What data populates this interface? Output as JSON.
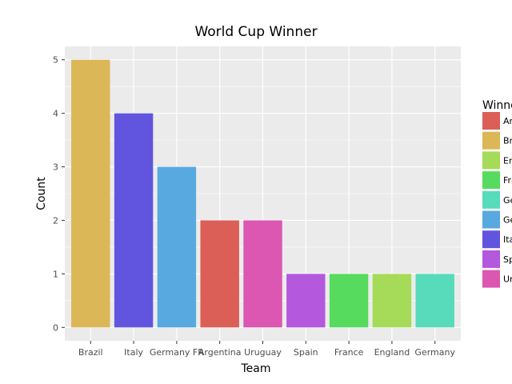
{
  "chart_data": {
    "type": "bar",
    "title": "World Cup Winner",
    "xlabel": "Team",
    "ylabel": "Count",
    "ylim": [
      0,
      5
    ],
    "yticks": [
      0,
      1,
      2,
      3,
      4,
      5
    ],
    "grid": true,
    "legend_position": "right",
    "legend_title": "Winner",
    "categories": [
      "Brazil",
      "Italy",
      "Germany FR",
      "Argentina",
      "Uruguay",
      "Spain",
      "France",
      "England",
      "Germany"
    ],
    "values": [
      5,
      4,
      3,
      2,
      2,
      1,
      1,
      1,
      1
    ],
    "bar_colors": [
      "#DBB758",
      "#6155DF",
      "#58A9DF",
      "#DB5F57",
      "#DB57B2",
      "#B458DE",
      "#57DB5E",
      "#A5DB58",
      "#57DBBA"
    ],
    "legend": [
      {
        "label": "Argentina",
        "color": "#DB5F57"
      },
      {
        "label": "Brazil",
        "color": "#DBB758"
      },
      {
        "label": "England",
        "color": "#A5DB58"
      },
      {
        "label": "France",
        "color": "#57DB5E"
      },
      {
        "label": "Germany",
        "color": "#57DBBA"
      },
      {
        "label": "Germany FR",
        "color": "#58A9DF"
      },
      {
        "label": "Italy",
        "color": "#6155DF"
      },
      {
        "label": "Spain",
        "color": "#B458DE"
      },
      {
        "label": "Uruguay",
        "color": "#DB57B2"
      }
    ]
  }
}
